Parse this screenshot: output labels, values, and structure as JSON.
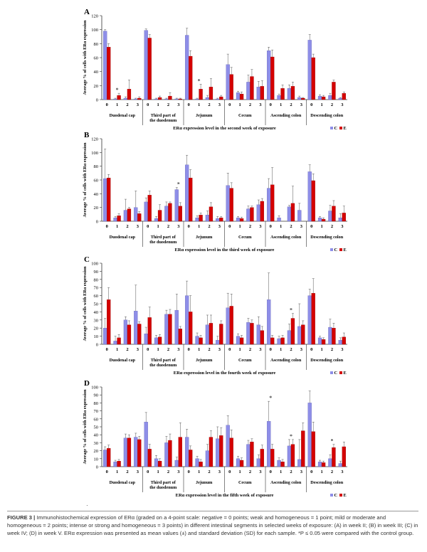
{
  "caption": {
    "label": "FIGURE 3 |",
    "text": "Immunohistochemical expression of ERα (graded on a 4-point scale: negative = 0 points; weak and homogeneous = 1 point; mild or moderate and homogeneous = 2 points; intense or strong and homogeneous = 3 points) in different intestinal segments in selected weeks of exposure: (A) in week II; (B) in week III; (C) in week IV; (D) in week V. ERα expression was presented as mean values (±) and standard deviation (SD) for each sample. *P ≤ 0.05 were compared with the control group."
  },
  "footnote_mark": "·",
  "colors": {
    "C": "#8e8ee8",
    "E": "#d40000",
    "axis": "#333333"
  },
  "chart_data": [
    {
      "type": "bar",
      "panel": "A",
      "ylabel": "Average % of cells with ERα expression",
      "xlabel": "ERα expression level in the second week of exposure",
      "ylim": [
        0,
        120
      ],
      "yticks": [
        0,
        20,
        40,
        60,
        80,
        100,
        120
      ],
      "segments": [
        "Duodenal cap",
        "Third part of the duodenum",
        "Jejunum",
        "Cecum",
        "Ascending colon",
        "Descending colon"
      ],
      "levels": [
        "0",
        "1",
        "2",
        "3"
      ],
      "legend": [
        "C",
        "E"
      ],
      "series": [
        {
          "name": "C",
          "values": [
            98,
            1,
            2,
            1,
            99,
            1,
            1,
            1,
            92,
            1,
            3,
            1,
            50,
            10,
            25,
            18,
            70,
            6,
            16,
            3,
            85,
            5,
            6,
            2
          ],
          "err": [
            2,
            1,
            2,
            1,
            2,
            1,
            1,
            1,
            10,
            1,
            3,
            1,
            15,
            2,
            10,
            8,
            5,
            2,
            5,
            2,
            8,
            2,
            3,
            1
          ]
        },
        {
          "name": "E",
          "values": [
            75,
            6,
            15,
            2,
            88,
            3,
            5,
            1,
            62,
            15,
            18,
            4,
            36,
            8,
            33,
            19,
            61,
            16,
            19,
            2,
            60,
            4,
            25,
            9
          ],
          "err": [
            5,
            3,
            13,
            2,
            5,
            2,
            5,
            1,
            8,
            7,
            12,
            2,
            10,
            3,
            10,
            8,
            10,
            5,
            6,
            1,
            5,
            2,
            3,
            2
          ]
        },
        {
          "name": "sig",
          "stars": [
            [
              0,
              1
            ],
            [
              2,
              1
            ]
          ]
        }
      ]
    },
    {
      "type": "bar",
      "panel": "B",
      "ylabel": "Average % of cells with ERα expression",
      "xlabel": "ERα expression level in the third week of exposure",
      "ylim": [
        0,
        120
      ],
      "yticks": [
        0,
        20,
        40,
        60,
        80,
        100,
        120
      ],
      "segments": [
        "Duodenal cap",
        "Third part of the duodenum",
        "Jejunum",
        "Cecum",
        "Ascending colon",
        "Descending colon"
      ],
      "levels": [
        "0",
        "1",
        "2",
        "3"
      ],
      "legend": [
        "C",
        "E"
      ],
      "series": [
        {
          "name": "C",
          "values": [
            62,
            5,
            16,
            20,
            28,
            4,
            22,
            46,
            82,
            5,
            9,
            4,
            52,
            5,
            18,
            24,
            48,
            5,
            21,
            16,
            72,
            5,
            15,
            5
          ],
          "err": [
            43,
            2,
            16,
            24,
            6,
            3,
            6,
            3,
            14,
            3,
            6,
            3,
            18,
            2,
            4,
            7,
            14,
            3,
            2,
            10,
            10,
            2,
            8,
            6
          ]
        },
        {
          "name": "E",
          "values": [
            63,
            8,
            18,
            11,
            38,
            16,
            26,
            22,
            63,
            9,
            21,
            5,
            48,
            4,
            20,
            29,
            53,
            0,
            26,
            0,
            59,
            3,
            22,
            12
          ],
          "err": [
            5,
            3,
            2,
            3,
            6,
            8,
            2,
            5,
            12,
            3,
            6,
            2,
            8,
            2,
            2,
            4,
            25,
            0,
            25,
            0,
            10,
            2,
            8,
            10
          ]
        },
        {
          "name": "sig",
          "stars": [
            [
              1,
              3
            ]
          ]
        }
      ]
    },
    {
      "type": "bar",
      "panel": "C",
      "ylabel": "Average % of cells with ERα expression",
      "xlabel": "ERα expression level in the fourth week of exposure",
      "ylim": [
        0,
        100
      ],
      "yticks": [
        0,
        10,
        20,
        30,
        40,
        50,
        60,
        70,
        80,
        90,
        100
      ],
      "segments": [
        "Duodenal cap",
        "Third part of the duodenum",
        "Jejunum",
        "Cecum",
        "Ascending colon",
        "Descending colon"
      ],
      "levels": [
        "0",
        "1",
        "2",
        "3"
      ],
      "legend": [
        "C",
        "E"
      ],
      "series": [
        {
          "name": "C",
          "values": [
            20,
            4,
            30,
            41,
            13,
            8,
            37,
            42,
            60,
            10,
            24,
            5,
            45,
            10,
            27,
            24,
            55,
            7,
            17,
            22,
            60,
            8,
            21,
            5
          ],
          "err": [
            12,
            6,
            4,
            32,
            8,
            3,
            5,
            20,
            18,
            4,
            12,
            5,
            18,
            3,
            5,
            10,
            33,
            3,
            8,
            28,
            8,
            2,
            10,
            3
          ]
        },
        {
          "name": "E",
          "values": [
            55,
            8,
            24,
            25,
            33,
            9,
            37,
            19,
            40,
            8,
            26,
            25,
            47,
            8,
            26,
            17,
            8,
            8,
            32,
            24,
            63,
            6,
            20,
            9
          ],
          "err": [
            15,
            4,
            5,
            3,
            13,
            3,
            6,
            3,
            20,
            3,
            10,
            4,
            15,
            3,
            4,
            5,
            3,
            3,
            6,
            5,
            18,
            2,
            6,
            5
          ]
        },
        {
          "name": "sig",
          "stars": [
            [
              4,
              2
            ]
          ]
        }
      ]
    },
    {
      "type": "bar",
      "panel": "D",
      "ylabel": "Average % of cells with ERα expression",
      "xlabel": "ERα expression level in the fifth week of exposure",
      "ylim": [
        0,
        100
      ],
      "yticks": [
        0,
        10,
        20,
        30,
        40,
        50,
        60,
        70,
        80,
        90,
        100
      ],
      "segments": [
        "Duodenal cap",
        "Third part of the duodenum",
        "Jejunum",
        "Cecum",
        "Ascending colon",
        "Descending colon"
      ],
      "levels": [
        "0",
        "1",
        "2",
        "3"
      ],
      "legend": [
        "C",
        "E"
      ],
      "series": [
        {
          "name": "C",
          "values": [
            21,
            6,
            36,
            37,
            56,
            10,
            30,
            8,
            37,
            10,
            20,
            35,
            52,
            10,
            28,
            10,
            57,
            8,
            26,
            9,
            80,
            6,
            10,
            4
          ],
          "err": [
            4,
            2,
            5,
            5,
            12,
            4,
            8,
            4,
            10,
            3,
            8,
            15,
            12,
            3,
            5,
            5,
            25,
            3,
            8,
            25,
            15,
            2,
            5,
            3
          ]
        },
        {
          "name": "E",
          "values": [
            23,
            7,
            36,
            34,
            22,
            7,
            33,
            37,
            21,
            6,
            37,
            39,
            36,
            8,
            31,
            22,
            22,
            6,
            28,
            45,
            44,
            5,
            24,
            25
          ],
          "err": [
            4,
            2,
            4,
            4,
            6,
            3,
            8,
            18,
            5,
            3,
            8,
            10,
            10,
            3,
            4,
            5,
            6,
            3,
            6,
            10,
            12,
            2,
            4,
            6
          ]
        },
        {
          "name": "sig",
          "stars": [
            [
              4,
              0
            ],
            [
              4,
              2
            ],
            [
              5,
              2
            ]
          ]
        }
      ]
    }
  ]
}
